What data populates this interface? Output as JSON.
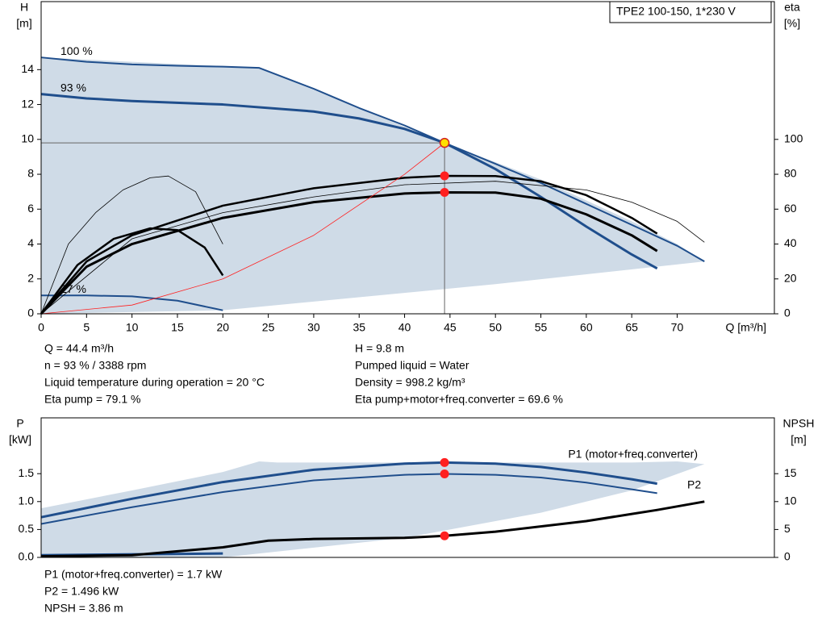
{
  "chart_data": [
    {
      "type": "line",
      "title": "TPE2 100-150, 1*230 V",
      "y_label": "H",
      "y_unit": "[m]",
      "y2_label": "eta",
      "y2_unit": "[%]",
      "x_label": "Q [m³/h]",
      "xlim": [
        0,
        80.7
      ],
      "xticks": [
        0,
        5,
        10,
        15,
        20,
        25,
        30,
        35,
        40,
        45,
        50,
        55,
        60,
        65,
        70
      ],
      "ylim": [
        0,
        17.9
      ],
      "yticks": [
        0,
        2,
        4,
        6,
        8,
        10,
        12,
        14
      ],
      "y2lim": [
        0,
        179
      ],
      "y2ticks": [
        0,
        20,
        40,
        60,
        80,
        100
      ],
      "envelope": {
        "color": "#cfdbe7",
        "x": [
          0,
          0,
          24,
          44.4,
          55,
          65,
          70,
          73,
          50,
          20,
          0
        ],
        "values": [
          0,
          14.7,
          14.1,
          9.8,
          7.7,
          5.3,
          4.0,
          3.0,
          1.7,
          0.2,
          0
        ]
      },
      "series": [
        {
          "name": "100 %",
          "color": "#1f4e8c",
          "x": [
            0,
            5,
            10,
            15,
            20,
            24,
            30,
            35,
            40,
            44.4,
            50,
            55,
            60,
            65,
            70,
            73
          ],
          "values": [
            14.7,
            14.45,
            14.3,
            14.22,
            14.17,
            14.1,
            12.9,
            11.8,
            10.8,
            9.8,
            8.6,
            7.5,
            6.3,
            5.1,
            3.9,
            3.0
          ]
        },
        {
          "name": "93 %",
          "color": "#1f4e8c",
          "x": [
            0,
            5,
            10,
            20,
            30,
            35,
            40,
            44.4,
            50,
            55,
            60,
            65,
            67.8
          ],
          "values": [
            12.6,
            12.35,
            12.2,
            12.0,
            11.6,
            11.2,
            10.6,
            9.8,
            8.3,
            6.7,
            5.0,
            3.4,
            2.6
          ]
        },
        {
          "name": "27 %",
          "color": "#1f4e8c",
          "x": [
            0,
            5,
            10,
            15,
            20
          ],
          "values": [
            1.05,
            1.05,
            1.0,
            0.75,
            0.2
          ]
        },
        {
          "color": "#000000",
          "axis": "y2",
          "x": [
            0,
            5,
            10,
            20,
            30,
            40,
            44.4,
            50,
            55,
            60,
            65,
            67.8
          ],
          "values": [
            0,
            30,
            45,
            62,
            72,
            78,
            79.1,
            79,
            76,
            68,
            55,
            46
          ]
        },
        {
          "color": "#000000",
          "axis": "y2",
          "x": [
            0,
            5,
            10,
            20,
            30,
            40,
            44.4,
            50,
            55,
            60,
            65,
            67.8
          ],
          "values": [
            0,
            27,
            40,
            55,
            64,
            69,
            69.6,
            69.5,
            66,
            57,
            45,
            36
          ]
        },
        {
          "color": "#000000",
          "axis": "y2",
          "x": [
            0,
            10,
            20,
            30,
            40,
            50,
            60,
            65,
            70,
            73
          ],
          "values": [
            0,
            43,
            58,
            67,
            74,
            76,
            71,
            64,
            53,
            41
          ]
        },
        {
          "color": "#000000",
          "axis": "y2",
          "x": [
            0,
            4,
            8,
            12,
            15,
            18,
            20
          ],
          "values": [
            0,
            28,
            43,
            49,
            48,
            38,
            22
          ]
        },
        {
          "color": "#000000",
          "axis": "y2",
          "x": [
            0,
            3,
            6,
            9,
            12,
            14,
            17,
            20
          ],
          "values": [
            0,
            40,
            58,
            71,
            78,
            79,
            70,
            40
          ]
        },
        {
          "color": "#ff2020",
          "x": [
            0,
            10,
            20,
            30,
            40,
            44.4
          ],
          "values": [
            0,
            0.5,
            2.0,
            4.5,
            8.0,
            9.8
          ]
        }
      ],
      "markers": [
        {
          "x": 44.4,
          "y": 9.8,
          "color": "#ffe000"
        },
        {
          "x": 44.4,
          "y": 79.1,
          "axis": "y2",
          "color": "#ff2020"
        },
        {
          "x": 44.4,
          "y": 69.6,
          "axis": "y2",
          "color": "#ff2020"
        }
      ],
      "notes_left": [
        "Q = 44.4 m³/h",
        "n = 93 % / 3388 rpm",
        "Liquid temperature during operation = 20 °C",
        "Eta pump = 79.1 %"
      ],
      "notes_right": [
        "H = 9.8 m",
        "Pumped liquid = Water",
        "Density = 998.2 kg/m³",
        "Eta pump+motor+freq.converter = 69.6 %"
      ]
    },
    {
      "type": "line",
      "y_label": "P",
      "y_unit": "[kW]",
      "y2_label": "NPSH",
      "y2_unit": "[m]",
      "xlim": [
        0,
        80.7
      ],
      "ylim": [
        0,
        2.5
      ],
      "yticks": [
        {
          "value": 0,
          "label": "0.0"
        },
        0.5,
        {
          "value": 1,
          "label": "1.0"
        },
        1.5
      ],
      "y2lim": [
        0,
        25
      ],
      "y2ticks": [
        0,
        5,
        10,
        15
      ],
      "envelope": {
        "color": "#cfdbe7",
        "x": [
          0,
          0,
          10,
          20,
          24,
          26,
          50,
          65,
          70,
          73,
          65,
          55,
          40,
          20,
          0
        ],
        "values": [
          0,
          0.88,
          1.2,
          1.53,
          1.72,
          1.7,
          1.7,
          1.7,
          1.72,
          1.67,
          1.2,
          0.8,
          0.35,
          0,
          0
        ]
      },
      "series": [
        {
          "name": "P1 (motor+freq.converter)",
          "color": "#1f4e8c",
          "x": [
            0,
            10,
            20,
            30,
            40,
            44.4,
            50,
            55,
            60,
            65,
            67.8
          ],
          "values": [
            0.72,
            1.05,
            1.35,
            1.57,
            1.68,
            1.7,
            1.68,
            1.62,
            1.52,
            1.4,
            1.32
          ]
        },
        {
          "name": "P2",
          "color": "#1f4e8c",
          "x": [
            0,
            10,
            20,
            30,
            40,
            44.4,
            50,
            55,
            60,
            65,
            67.8
          ],
          "values": [
            0.6,
            0.9,
            1.17,
            1.38,
            1.48,
            1.496,
            1.48,
            1.43,
            1.34,
            1.22,
            1.15
          ]
        },
        {
          "color": "#1f4e8c",
          "x": [
            0,
            20
          ],
          "values": [
            0.04,
            0.07
          ]
        },
        {
          "color": "#000000",
          "axis": "y2",
          "x": [
            0,
            10,
            20,
            25,
            30,
            40,
            44.4,
            50,
            60,
            67.8,
            73
          ],
          "values": [
            0.2,
            0.4,
            1.8,
            3.0,
            3.3,
            3.5,
            3.86,
            4.6,
            6.5,
            8.5,
            10
          ]
        }
      ],
      "markers": [
        {
          "x": 44.4,
          "y": 1.7,
          "color": "#ff2020"
        },
        {
          "x": 44.4,
          "y": 1.496,
          "color": "#ff2020"
        },
        {
          "x": 44.4,
          "y": 3.86,
          "axis": "y2",
          "color": "#ff2020"
        }
      ],
      "notes_left": [
        "P1 (motor+freq.converter) = 1.7 kW",
        "P2 = 1.496 kW",
        "NPSH = 3.86 m"
      ]
    }
  ]
}
